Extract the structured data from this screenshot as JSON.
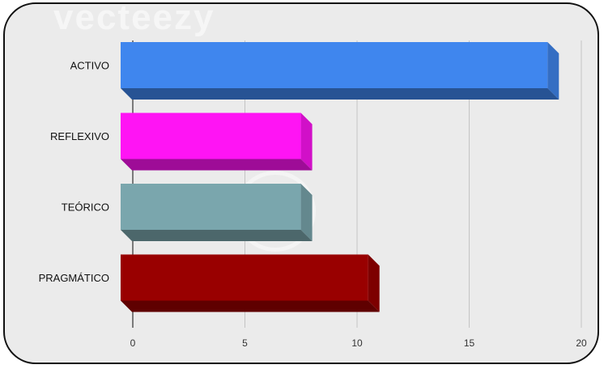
{
  "chart_data": {
    "type": "bar",
    "orientation": "horizontal",
    "style": "3d",
    "categories": [
      "ACTIVO",
      "REFLEXIVO",
      "TEÓRICO",
      "PRAGMÁTICO"
    ],
    "values": [
      19,
      8,
      8,
      11
    ],
    "colors": [
      "#3f86ee",
      "#ff14f4",
      "#7aa6ad",
      "#990000"
    ],
    "xlim": [
      0,
      20
    ],
    "xticks": [
      "0",
      "5",
      "10",
      "15",
      "20"
    ],
    "grid": true,
    "legend": "none"
  },
  "watermark": {
    "text": "vecteezy"
  }
}
